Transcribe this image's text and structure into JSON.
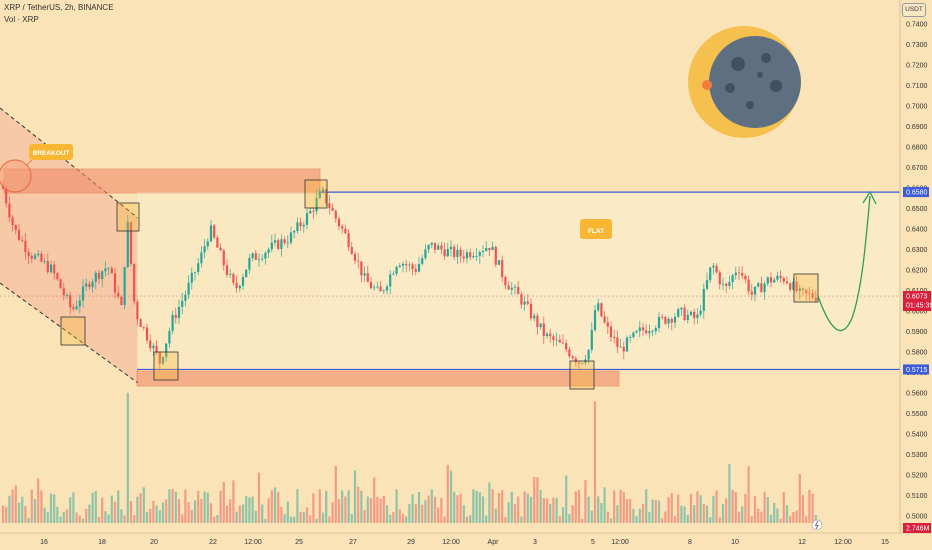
{
  "header": {
    "symbol_line": "XRP / TetherUS, 2h, BINANCE",
    "volume_line": "Vol · XRP"
  },
  "currency_button": "USDT",
  "colors": {
    "up": "#26a69a",
    "down": "#ef5350",
    "level": "#3b5bdb",
    "zone": "#f28b6a",
    "channel_fill": "#f6b49a",
    "box": "#f7b733",
    "arrow": "#2e9e5b"
  },
  "annotations": {
    "breakout": "BREAKOUT",
    "flat": "FLAT"
  },
  "price_tags": {
    "resistance": "0.6580",
    "support": "0.5715",
    "last_price": "0.6073",
    "countdown": "01:45:39",
    "volume": "2.746M"
  },
  "chart_data": {
    "type": "candlestick",
    "ylim": [
      0.49,
      0.745
    ],
    "y_ticks": [
      "0.7400",
      "0.7300",
      "0.7200",
      "0.7100",
      "0.7000",
      "0.6900",
      "0.6800",
      "0.6700",
      "0.6600",
      "0.6500",
      "0.6400",
      "0.6300",
      "0.6200",
      "0.6100",
      "0.6000",
      "0.5900",
      "0.5800",
      "0.5700",
      "0.5600",
      "0.5500",
      "0.5400",
      "0.5300",
      "0.5200",
      "0.5100",
      "0.5000"
    ],
    "x_ticks": [
      "16",
      "18",
      "20",
      "22",
      "12:00",
      "25",
      "27",
      "29",
      "12:00",
      "Apr",
      "3",
      "5",
      "12:00",
      "8",
      "10",
      "12",
      "12:00",
      "15"
    ],
    "resistance": 0.658,
    "support": 0.5715,
    "last_price": 0.6073,
    "price_path": [
      [
        0,
        0.665
      ],
      [
        14,
        0.64
      ],
      [
        30,
        0.628
      ],
      [
        52,
        0.62
      ],
      [
        72,
        0.6
      ],
      [
        90,
        0.615
      ],
      [
        108,
        0.622
      ],
      [
        122,
        0.6
      ],
      [
        127,
        0.646
      ],
      [
        135,
        0.6
      ],
      [
        145,
        0.59
      ],
      [
        160,
        0.575
      ],
      [
        172,
        0.595
      ],
      [
        185,
        0.608
      ],
      [
        200,
        0.625
      ],
      [
        210,
        0.64
      ],
      [
        222,
        0.625
      ],
      [
        235,
        0.61
      ],
      [
        250,
        0.625
      ],
      [
        268,
        0.63
      ],
      [
        290,
        0.636
      ],
      [
        310,
        0.648
      ],
      [
        322,
        0.658
      ],
      [
        335,
        0.646
      ],
      [
        350,
        0.633
      ],
      [
        365,
        0.615
      ],
      [
        380,
        0.608
      ],
      [
        398,
        0.625
      ],
      [
        415,
        0.62
      ],
      [
        430,
        0.632
      ],
      [
        460,
        0.627
      ],
      [
        490,
        0.632
      ],
      [
        505,
        0.615
      ],
      [
        522,
        0.605
      ],
      [
        545,
        0.588
      ],
      [
        565,
        0.582
      ],
      [
        580,
        0.575
      ],
      [
        590,
        0.582
      ],
      [
        596,
        0.604
      ],
      [
        606,
        0.592
      ],
      [
        620,
        0.581
      ],
      [
        640,
        0.59
      ],
      [
        660,
        0.595
      ],
      [
        680,
        0.599
      ],
      [
        697,
        0.596
      ],
      [
        712,
        0.623
      ],
      [
        725,
        0.61
      ],
      [
        738,
        0.622
      ],
      [
        752,
        0.608
      ],
      [
        768,
        0.615
      ],
      [
        785,
        0.616
      ],
      [
        800,
        0.608
      ],
      [
        815,
        0.6073
      ]
    ],
    "volume_spikes": [
      [
        127,
        3.1
      ],
      [
        595,
        2.9
      ],
      [
        730,
        1.4
      ],
      [
        433,
        0.8
      ],
      [
        205,
        0.75
      ],
      [
        15,
        0.9
      ],
      [
        52,
        0.7
      ],
      [
        145,
        0.85
      ],
      [
        527,
        0.7
      ],
      [
        555,
        0.6
      ]
    ]
  }
}
